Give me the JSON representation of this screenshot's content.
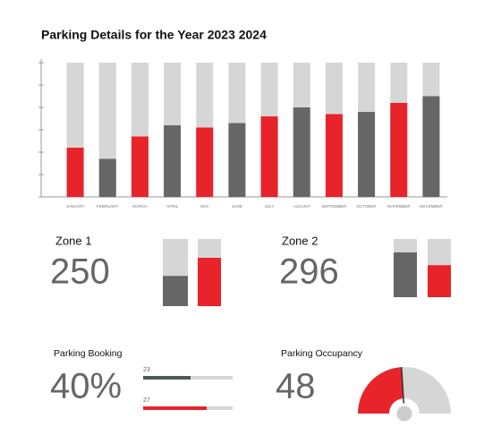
{
  "chart_data": {
    "type": "bar",
    "title": "Parking Details for the Year 2023 2024",
    "categories": [
      "JANUARY",
      "FEBRUARY",
      "MARCH",
      "APRIL",
      "MAY",
      "JUNE",
      "JULY",
      "AUGUST",
      "SEPTEMBER",
      "OCTOBER",
      "NOVEMBER",
      "DECEMBER"
    ],
    "values": [
      22,
      17,
      27,
      32,
      31,
      33,
      36,
      40,
      37,
      38,
      42,
      45
    ],
    "colors": [
      "#e8232a",
      "#666666",
      "#e8232a",
      "#666666",
      "#e8232a",
      "#666666",
      "#e8232a",
      "#666666",
      "#e8232a",
      "#666666",
      "#e8232a",
      "#666666"
    ],
    "ylim": [
      0,
      60
    ],
    "yticks": [
      0,
      10,
      20,
      30,
      40,
      50,
      60
    ]
  },
  "zones": [
    {
      "title": "Zone 1",
      "value": 250,
      "bar_lim": [
        0,
        100
      ],
      "bars": [
        {
          "color": "#666666",
          "fill": 45
        },
        {
          "color": "#e8232a",
          "fill": 72
        }
      ]
    },
    {
      "title": "Zone 2",
      "value": 296,
      "bar_lim": [
        0,
        100
      ],
      "bars": [
        {
          "color": "#666666",
          "fill": 77
        },
        {
          "color": "#e8232a",
          "fill": 55
        }
      ]
    }
  ],
  "booking": {
    "title": "Parking Booking",
    "value": 40,
    "value_label": "40%",
    "bar_lim": [
      0,
      100
    ],
    "bars": [
      {
        "label": 23,
        "color": "#4e5955",
        "fill": 53
      },
      {
        "label": 27,
        "color": "#e8232a",
        "fill": 71
      }
    ]
  },
  "occupancy": {
    "title": "Parking Occupancy",
    "value": 48,
    "gauge_lim": [
      0,
      100
    ],
    "color": "#e8232a"
  }
}
